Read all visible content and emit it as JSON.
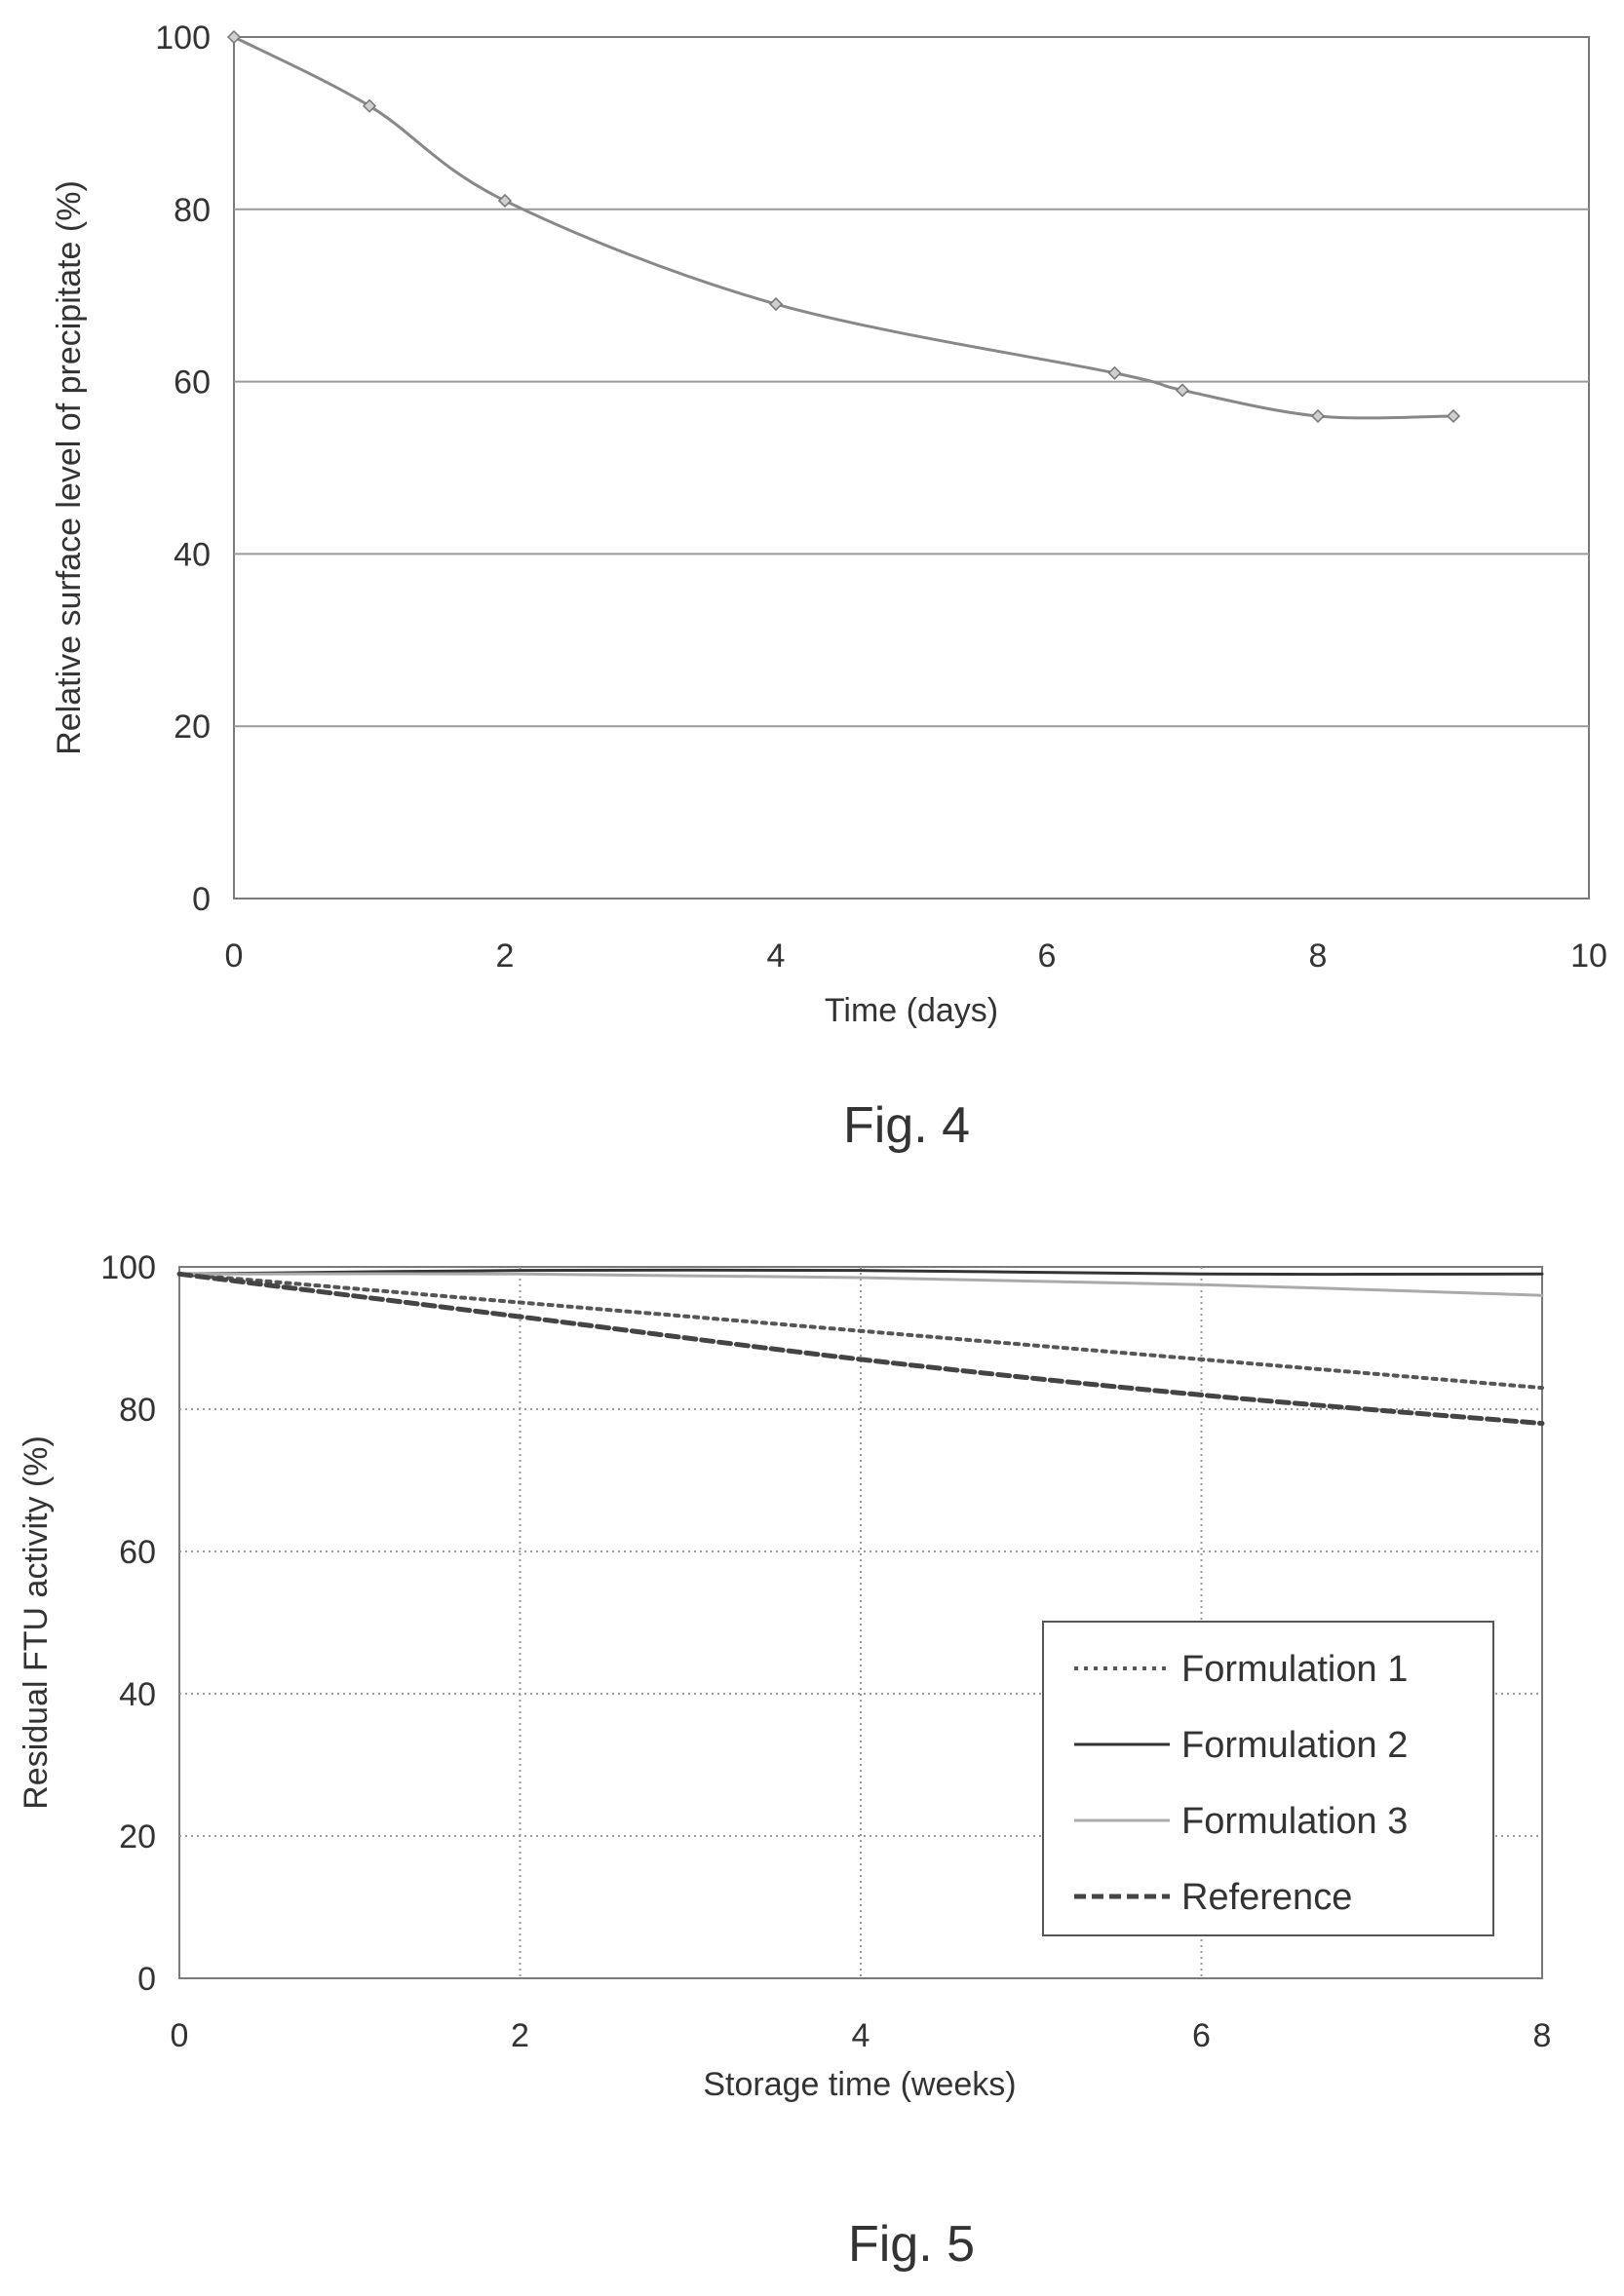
{
  "chart_data": [
    {
      "type": "line",
      "caption": "Fig. 4",
      "xlabel": "Time (days)",
      "ylabel": "Relative surface level of precipitate (%)",
      "xlim": [
        0,
        10
      ],
      "ylim": [
        0,
        100
      ],
      "xticks": [
        0,
        2,
        4,
        6,
        8,
        10
      ],
      "yticks": [
        0,
        20,
        40,
        60,
        80,
        100
      ],
      "grid": "horizontal",
      "legend": "none",
      "series": [
        {
          "x": [
            0,
            1,
            2,
            4,
            6.5,
            7,
            8,
            9
          ],
          "y": [
            100,
            92,
            81,
            69,
            61,
            59,
            56,
            56
          ],
          "style": "solid-markers",
          "color": "#888888"
        }
      ]
    },
    {
      "type": "line",
      "caption": "Fig. 5",
      "xlabel": "Storage time (weeks)",
      "ylabel": "Residual FTU activity (%)",
      "xlim": [
        0,
        8
      ],
      "ylim": [
        0,
        100
      ],
      "xticks": [
        0,
        2,
        4,
        6,
        8
      ],
      "yticks": [
        0,
        20,
        40,
        60,
        80,
        100
      ],
      "grid": "both",
      "legend": "right",
      "series": [
        {
          "name": "Formulation 1",
          "x": [
            0,
            2,
            4,
            6,
            8
          ],
          "y": [
            99,
            95,
            91,
            87,
            83
          ],
          "style": "dotted",
          "color": "#555555"
        },
        {
          "name": "Formulation 2",
          "x": [
            0,
            2,
            4,
            6,
            8
          ],
          "y": [
            99,
            99.5,
            99.5,
            99,
            99
          ],
          "style": "solid",
          "color": "#333333"
        },
        {
          "name": "Formulation 3",
          "x": [
            0,
            2,
            4,
            6,
            8
          ],
          "y": [
            99,
            99,
            98.5,
            97.5,
            96
          ],
          "style": "thin",
          "color": "#aaaaaa"
        },
        {
          "name": "Reference",
          "x": [
            0,
            2,
            4,
            6,
            8
          ],
          "y": [
            99,
            93,
            87,
            82,
            78
          ],
          "style": "dashed",
          "color": "#444444"
        }
      ]
    }
  ]
}
